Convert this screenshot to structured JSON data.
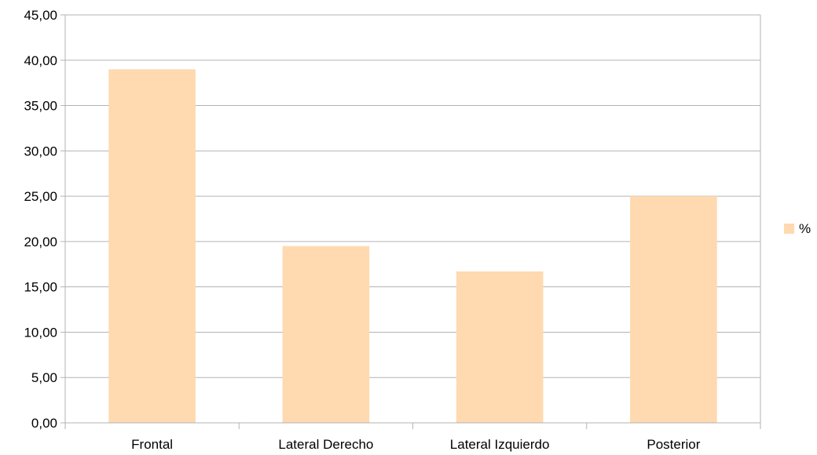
{
  "chart_data": {
    "type": "bar",
    "title": "",
    "xlabel": "",
    "ylabel": "",
    "categories": [
      "Frontal",
      "Lateral Derecho",
      "Lateral Izquierdo",
      "Posterior"
    ],
    "series": [
      {
        "name": "%",
        "values": [
          39.0,
          19.5,
          16.7,
          25.0
        ],
        "color": "#ffd9b0"
      }
    ],
    "ylim": [
      0,
      45
    ],
    "yticks": [
      0,
      5,
      10,
      15,
      20,
      25,
      30,
      35,
      40,
      45
    ],
    "ytick_labels": [
      "0,00",
      "5,00",
      "10,00",
      "15,00",
      "20,00",
      "25,00",
      "30,00",
      "35,00",
      "40,00",
      "45,00"
    ],
    "grid": true,
    "legend": {
      "position": "right",
      "entries": [
        "%"
      ]
    }
  },
  "colors": {
    "bar": "#ffd9b0",
    "grid": "#b3b3b3",
    "axis": "#b3b3b3",
    "text": "#000000"
  }
}
